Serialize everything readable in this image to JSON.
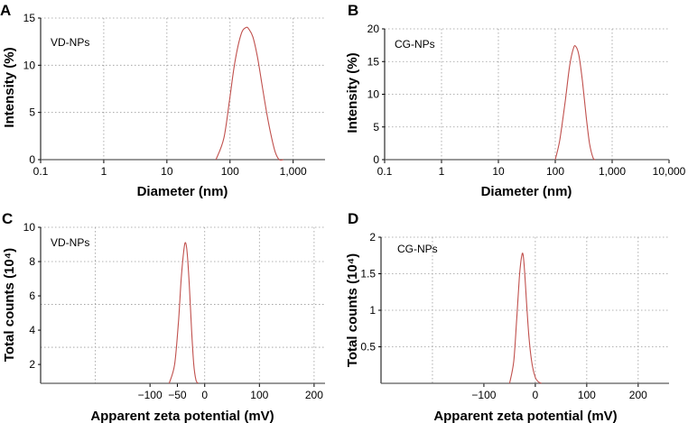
{
  "chart_data": [
    {
      "panel": "A",
      "type": "line",
      "sample": "VD-NPs",
      "xscale": "log",
      "xlim": [
        0.1,
        3200
      ],
      "ylim": [
        0,
        15
      ],
      "xticks": [
        {
          "v": 0.1,
          "label": "0.1"
        },
        {
          "v": 1,
          "label": "1"
        },
        {
          "v": 10,
          "label": "10"
        },
        {
          "v": 100,
          "label": "100"
        },
        {
          "v": 1000,
          "label": "1,000"
        }
      ],
      "yticks": [
        {
          "v": 0,
          "label": "0"
        },
        {
          "v": 5,
          "label": "5"
        },
        {
          "v": 10,
          "label": "10"
        },
        {
          "v": 15,
          "label": "15"
        }
      ],
      "xgrid": [
        1,
        10,
        100,
        1000
      ],
      "ygrid": [
        5,
        10,
        15
      ],
      "xlabel": "Diameter (nm)",
      "ylabel": "Intensity (%)",
      "x": [
        60,
        80,
        100,
        120,
        150,
        180,
        200,
        230,
        270,
        320,
        380,
        450,
        520,
        600,
        700
      ],
      "y": [
        0,
        2.3,
        6.7,
        10.4,
        13.3,
        14.0,
        13.8,
        13.0,
        11.0,
        8.0,
        5.0,
        2.5,
        0.8,
        0,
        0
      ]
    },
    {
      "panel": "B",
      "type": "line",
      "sample": "CG-NPs",
      "xscale": "log",
      "xlim": [
        0.1,
        10000
      ],
      "ylim": [
        0,
        20
      ],
      "xticks": [
        {
          "v": 0.1,
          "label": "0.1"
        },
        {
          "v": 1,
          "label": "1"
        },
        {
          "v": 10,
          "label": "10"
        },
        {
          "v": 100,
          "label": "100"
        },
        {
          "v": 1000,
          "label": "1,000"
        },
        {
          "v": 10000,
          "label": "10,000"
        }
      ],
      "yticks": [
        {
          "v": 0,
          "label": "0"
        },
        {
          "v": 5,
          "label": "5"
        },
        {
          "v": 10,
          "label": "10"
        },
        {
          "v": 15,
          "label": "15"
        },
        {
          "v": 20,
          "label": "20"
        }
      ],
      "xgrid": [
        1,
        10,
        100,
        1000
      ],
      "ygrid": [
        5,
        10,
        15,
        20
      ],
      "xlabel": "Diameter (nm)",
      "ylabel": "Intensity (%)",
      "x": [
        100,
        120,
        150,
        180,
        210,
        230,
        260,
        300,
        350,
        400,
        460,
        500
      ],
      "y": [
        0,
        3.0,
        9.0,
        14.5,
        17.1,
        17.3,
        16.0,
        12.0,
        6.5,
        2.5,
        0.3,
        0
      ]
    },
    {
      "panel": "C",
      "type": "line",
      "sample": "VD-NPs",
      "xscale": "linear",
      "xlim": [
        -300,
        220
      ],
      "ylim": [
        0.9,
        10
      ],
      "xticks": [
        {
          "v": -100,
          "label": "−100"
        },
        {
          "v": -50,
          "label": "−50"
        },
        {
          "v": 0,
          "label": "0"
        },
        {
          "v": 100,
          "label": "100"
        },
        {
          "v": 200,
          "label": "200"
        }
      ],
      "yticks": [
        {
          "v": 2,
          "label": "2"
        },
        {
          "v": 4,
          "label": "4"
        },
        {
          "v": 6,
          "label": "6"
        },
        {
          "v": 8,
          "label": "8"
        },
        {
          "v": 10,
          "label": "10"
        }
      ],
      "xgrid": [
        -200,
        0,
        100,
        200
      ],
      "ygrid": [
        3,
        5.5,
        8,
        10
      ],
      "xlabel": "Apparent zeta potential (mV)",
      "ylabel": "Total counts (10⁴)",
      "x": [
        -65,
        -55,
        -48,
        -43,
        -38,
        -35,
        -32,
        -28,
        -24,
        -20,
        -16,
        -12
      ],
      "y": [
        0.9,
        2.0,
        4.5,
        7.0,
        8.7,
        9.1,
        8.5,
        6.5,
        4.0,
        2.0,
        1.1,
        0.9
      ]
    },
    {
      "panel": "D",
      "type": "line",
      "sample": "CG-NPs",
      "xscale": "linear",
      "xlim": [
        -300,
        260
      ],
      "ylim": [
        0,
        2
      ],
      "xticks": [
        {
          "v": -100,
          "label": "−100"
        },
        {
          "v": 0,
          "label": "0"
        },
        {
          "v": 100,
          "label": "100"
        },
        {
          "v": 200,
          "label": "200"
        }
      ],
      "yticks": [
        {
          "v": 0.5,
          "label": "0.5"
        },
        {
          "v": 1,
          "label": "1"
        },
        {
          "v": 1.5,
          "label": "1.5"
        },
        {
          "v": 2,
          "label": "2"
        }
      ],
      "xgrid": [
        -200,
        0,
        100,
        200
      ],
      "ygrid": [
        0.5,
        1,
        1.5,
        2
      ],
      "xlabel": "Apparent zeta potential (mV)",
      "ylabel": "Total counts (10⁴)",
      "x": [
        -50,
        -42,
        -36,
        -31,
        -27,
        -24,
        -21,
        -17,
        -12,
        -6,
        0,
        6,
        12
      ],
      "y": [
        0,
        0.3,
        0.9,
        1.45,
        1.72,
        1.77,
        1.55,
        1.1,
        0.6,
        0.25,
        0.08,
        0.02,
        0
      ]
    }
  ]
}
